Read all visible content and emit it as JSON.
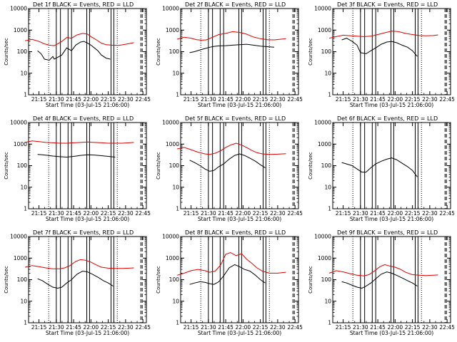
{
  "chart_data": [
    {
      "type": "line",
      "title": "Det 1f BLACK = Events, RED = LLD",
      "ylabel": "Counts/sec",
      "xlabel": "Start Time (03-Jul-15 21:06:00)",
      "xticks": [
        "21:15",
        "21:30",
        "21:45",
        "22:00",
        "22:15",
        "22:30",
        "22:45"
      ],
      "yticks": [
        "1",
        "10",
        "100",
        "1000",
        "10000"
      ],
      "ylim": [
        1,
        10000
      ],
      "yscale": "log",
      "series": [
        {
          "color": "#000000",
          "x": [
            21.23,
            21.28,
            21.33,
            21.4,
            21.45,
            21.47,
            21.52,
            21.58,
            21.65,
            21.72,
            21.78,
            21.85,
            21.9,
            21.95,
            22.0,
            22.05,
            22.1,
            22.15,
            22.22,
            22.28
          ],
          "y": [
            110,
            80,
            45,
            40,
            60,
            45,
            55,
            70,
            150,
            110,
            200,
            280,
            300,
            250,
            200,
            150,
            110,
            70,
            50,
            45
          ]
        },
        {
          "color": "#e00000",
          "x": [
            21.05,
            21.15,
            21.25,
            21.33,
            21.4,
            21.47,
            21.52,
            21.58,
            21.65,
            21.72,
            21.8,
            21.88,
            21.95,
            22.0,
            22.08,
            22.15,
            22.22,
            22.3,
            22.4,
            22.5,
            22.62
          ],
          "y": [
            320,
            370,
            300,
            230,
            200,
            190,
            230,
            300,
            450,
            420,
            600,
            700,
            650,
            500,
            350,
            250,
            210,
            200,
            195,
            220,
            260
          ]
        }
      ]
    },
    {
      "type": "line",
      "title": "Det 2f BLACK = Events, RED = LLD",
      "ylabel": "Counts/sec",
      "xlabel": "Start Time (03-Jul-15 21:06:00)",
      "xticks": [
        "21:15",
        "21:30",
        "21:45",
        "22:00",
        "22:15",
        "22:30",
        "22:45"
      ],
      "yticks": [
        "1",
        "10",
        "100",
        "1000",
        "10000"
      ],
      "ylim": [
        1,
        10000
      ],
      "yscale": "log",
      "series": [
        {
          "color": "#000000",
          "x": [
            21.23,
            21.3,
            21.38,
            21.45,
            21.52,
            21.58,
            21.65,
            21.75,
            21.85,
            21.95,
            22.05,
            22.15,
            22.25,
            22.35,
            22.45
          ],
          "y": [
            90,
            100,
            120,
            140,
            160,
            175,
            185,
            190,
            200,
            210,
            220,
            200,
            180,
            170,
            160
          ]
        },
        {
          "color": "#e00000",
          "x": [
            21.05,
            21.15,
            21.25,
            21.33,
            21.4,
            21.47,
            21.55,
            21.65,
            21.75,
            21.85,
            21.95,
            22.05,
            22.15,
            22.25,
            22.35,
            22.45,
            22.55,
            22.62
          ],
          "y": [
            380,
            470,
            420,
            360,
            340,
            350,
            450,
            620,
            700,
            850,
            780,
            650,
            480,
            400,
            360,
            350,
            380,
            400
          ]
        }
      ]
    },
    {
      "type": "line",
      "title": "Det 3f BLACK = Events, RED = LLD",
      "ylabel": "Counts/sec",
      "xlabel": "Start Time (03-Jul-15 21:06:00)",
      "xticks": [
        "21:15",
        "21:30",
        "21:45",
        "22:00",
        "22:15",
        "22:30",
        "22:45"
      ],
      "yticks": [
        "1",
        "10",
        "100",
        "1000",
        "10000"
      ],
      "ylim": [
        1,
        10000
      ],
      "yscale": "log",
      "series": [
        {
          "color": "#000000",
          "x": [
            21.23,
            21.3,
            21.38,
            21.45,
            21.5,
            21.58,
            21.65,
            21.72,
            21.8,
            21.88,
            21.95,
            22.02,
            22.1,
            22.18,
            22.25,
            22.32
          ],
          "y": [
            350,
            420,
            300,
            200,
            90,
            80,
            110,
            150,
            220,
            280,
            300,
            260,
            200,
            160,
            110,
            60
          ]
        },
        {
          "color": "#e00000",
          "x": [
            21.05,
            21.15,
            21.25,
            21.35,
            21.45,
            21.55,
            21.65,
            21.75,
            21.85,
            21.95,
            22.05,
            22.15,
            22.25,
            22.35,
            22.45,
            22.55,
            22.62
          ],
          "y": [
            420,
            500,
            580,
            550,
            520,
            500,
            520,
            620,
            750,
            900,
            850,
            700,
            620,
            560,
            540,
            560,
            600
          ]
        }
      ]
    },
    {
      "type": "line",
      "title": "Det 4f BLACK = Events, RED = LLD",
      "ylabel": "Counts/sec",
      "xlabel": "Start Time (03-Jul-15 21:06:00)",
      "xticks": [
        "21:15",
        "21:30",
        "21:45",
        "22:00",
        "22:15",
        "22:30",
        "22:45"
      ],
      "yticks": [
        "1",
        "10",
        "100",
        "1000",
        "10000"
      ],
      "ylim": [
        1,
        10000
      ],
      "yscale": "log",
      "series": [
        {
          "color": "#000000",
          "x": [
            21.23,
            21.3,
            21.38,
            21.45,
            21.55,
            21.65,
            21.75,
            21.85,
            21.95,
            22.05,
            22.15,
            22.25,
            22.35
          ],
          "y": [
            330,
            320,
            300,
            280,
            260,
            250,
            270,
            300,
            320,
            310,
            290,
            270,
            250
          ]
        },
        {
          "color": "#e00000",
          "x": [
            21.05,
            21.15,
            21.25,
            21.35,
            21.45,
            21.55,
            21.65,
            21.75,
            21.85,
            21.95,
            22.05,
            22.15,
            22.25,
            22.35,
            22.45,
            22.55,
            22.62
          ],
          "y": [
            1200,
            1400,
            1300,
            1200,
            1150,
            1100,
            1100,
            1150,
            1200,
            1250,
            1200,
            1150,
            1100,
            1100,
            1100,
            1150,
            1200
          ]
        }
      ]
    },
    {
      "type": "line",
      "title": "Det 5f BLACK = Events, RED = LLD",
      "ylabel": "Counts/sec",
      "xlabel": "Start Time (03-Jul-15 21:06:00)",
      "xticks": [
        "21:15",
        "21:30",
        "21:45",
        "22:00",
        "22:15",
        "22:30",
        "22:45"
      ],
      "yticks": [
        "1",
        "10",
        "100",
        "1000",
        "10000"
      ],
      "ylim": [
        1,
        10000
      ],
      "yscale": "log",
      "series": [
        {
          "color": "#000000",
          "x": [
            21.23,
            21.3,
            21.38,
            21.45,
            21.52,
            21.58,
            21.65,
            21.72,
            21.8,
            21.88,
            21.95,
            22.02,
            22.1,
            22.18,
            22.25,
            22.32
          ],
          "y": [
            180,
            140,
            100,
            70,
            55,
            60,
            90,
            120,
            200,
            300,
            350,
            300,
            220,
            160,
            110,
            80
          ]
        },
        {
          "color": "#e00000",
          "x": [
            21.05,
            21.15,
            21.25,
            21.35,
            21.45,
            21.52,
            21.6,
            21.68,
            21.75,
            21.82,
            21.9,
            21.98,
            22.05,
            22.12,
            22.2,
            22.28,
            22.38,
            22.5,
            22.62
          ],
          "y": [
            600,
            700,
            550,
            420,
            350,
            330,
            380,
            500,
            700,
            900,
            1100,
            900,
            700,
            520,
            400,
            350,
            330,
            340,
            360
          ]
        }
      ]
    },
    {
      "type": "line",
      "title": "Det 6f BLACK = Events, RED = LLD",
      "ylabel": "Counts/sec",
      "xlabel": "Start Time (03-Jul-15 21:06:00)",
      "xticks": [
        "21:15",
        "21:30",
        "21:45",
        "22:00",
        "22:15",
        "22:30",
        "22:45"
      ],
      "yticks": [
        "1",
        "10",
        "100",
        "1000",
        "10000"
      ],
      "ylim": [
        1,
        10000
      ],
      "yscale": "log",
      "series": [
        {
          "color": "#000000",
          "x": [
            21.23,
            21.3,
            21.38,
            21.45,
            21.52,
            21.58,
            21.65,
            21.72,
            21.8,
            21.88,
            21.95,
            22.02,
            22.1,
            22.18,
            22.25,
            22.32
          ],
          "y": [
            140,
            120,
            100,
            70,
            50,
            50,
            80,
            120,
            160,
            200,
            230,
            190,
            130,
            90,
            60,
            30
          ]
        }
      ]
    },
    {
      "type": "line",
      "title": "Det 7f BLACK = Events, RED = LLD",
      "ylabel": "Counts/sec",
      "xlabel": "Start Time (03-Jul-15 21:06:00)",
      "xticks": [
        "21:15",
        "21:30",
        "21:45",
        "22:00",
        "22:15",
        "22:30",
        "22:45"
      ],
      "yticks": [
        "1",
        "10",
        "100",
        "1000",
        "10000"
      ],
      "ylim": [
        1,
        10000
      ],
      "yscale": "log",
      "series": [
        {
          "color": "#000000",
          "x": [
            21.23,
            21.3,
            21.38,
            21.45,
            21.52,
            21.58,
            21.65,
            21.72,
            21.8,
            21.88,
            21.95,
            22.02,
            22.1,
            22.18,
            22.25,
            22.32
          ],
          "y": [
            110,
            90,
            60,
            45,
            40,
            45,
            70,
            100,
            180,
            250,
            230,
            180,
            130,
            90,
            70,
            50
          ]
        },
        {
          "color": "#e00000",
          "x": [
            21.05,
            21.15,
            21.25,
            21.35,
            21.45,
            21.55,
            21.62,
            21.7,
            21.78,
            21.85,
            21.92,
            22.0,
            22.08,
            22.15,
            22.25,
            22.35,
            22.45,
            22.55,
            22.62
          ],
          "y": [
            380,
            450,
            400,
            350,
            320,
            320,
            350,
            450,
            700,
            850,
            800,
            650,
            480,
            380,
            340,
            330,
            330,
            340,
            350
          ]
        }
      ]
    },
    {
      "type": "line",
      "title": "Det 8f BLACK = Events, RED = LLD",
      "ylabel": "Counts/sec",
      "xlabel": "Start Time (03-Jul-15 21:06:00)",
      "xticks": [
        "21:15",
        "21:30",
        "21:45",
        "22:00",
        "22:15",
        "22:30",
        "22:45"
      ],
      "yticks": [
        "1",
        "10",
        "100",
        "1000",
        "10000"
      ],
      "ylim": [
        1,
        10000
      ],
      "yscale": "log",
      "series": [
        {
          "color": "#000000",
          "x": [
            21.23,
            21.3,
            21.38,
            21.45,
            21.52,
            21.58,
            21.65,
            21.72,
            21.8,
            21.88,
            21.95,
            22.02,
            22.1,
            22.18,
            22.25,
            22.32
          ],
          "y": [
            60,
            70,
            80,
            75,
            65,
            60,
            80,
            150,
            350,
            500,
            400,
            300,
            250,
            160,
            100,
            70
          ]
        },
        {
          "color": "#e00000",
          "x": [
            21.05,
            21.15,
            21.25,
            21.35,
            21.45,
            21.52,
            21.6,
            21.68,
            21.75,
            21.82,
            21.9,
            21.98,
            22.05,
            22.12,
            22.2,
            22.28,
            22.38,
            22.5,
            22.62
          ],
          "y": [
            160,
            200,
            260,
            300,
            260,
            220,
            250,
            500,
            1500,
            1800,
            1300,
            1600,
            900,
            600,
            350,
            250,
            200,
            200,
            220
          ]
        }
      ]
    },
    {
      "type": "line",
      "title": "Det 9f BLACK = Events, RED = LLD",
      "ylabel": "Counts/sec",
      "xlabel": "Start Time (03-Jul-15 21:06:00)",
      "xticks": [
        "21:15",
        "21:30",
        "21:45",
        "22:00",
        "22:15",
        "22:30",
        "22:45"
      ],
      "yticks": [
        "1",
        "10",
        "100",
        "1000",
        "10000"
      ],
      "ylim": [
        1,
        10000
      ],
      "yscale": "log",
      "series": [
        {
          "color": "#000000",
          "x": [
            21.23,
            21.3,
            21.38,
            21.45,
            21.52,
            21.58,
            21.65,
            21.72,
            21.8,
            21.88,
            21.95,
            22.02,
            22.1,
            22.18,
            22.25,
            22.32
          ],
          "y": [
            80,
            70,
            55,
            45,
            40,
            50,
            70,
            110,
            180,
            230,
            200,
            160,
            120,
            90,
            70,
            50
          ]
        },
        {
          "color": "#e00000",
          "x": [
            21.05,
            21.15,
            21.25,
            21.35,
            21.45,
            21.55,
            21.62,
            21.7,
            21.78,
            21.85,
            21.92,
            22.0,
            22.08,
            22.15,
            22.25,
            22.35,
            22.45,
            22.55,
            22.62
          ],
          "y": [
            200,
            260,
            230,
            190,
            160,
            150,
            170,
            250,
            400,
            500,
            430,
            380,
            300,
            220,
            170,
            160,
            155,
            160,
            165
          ]
        }
      ]
    }
  ]
}
